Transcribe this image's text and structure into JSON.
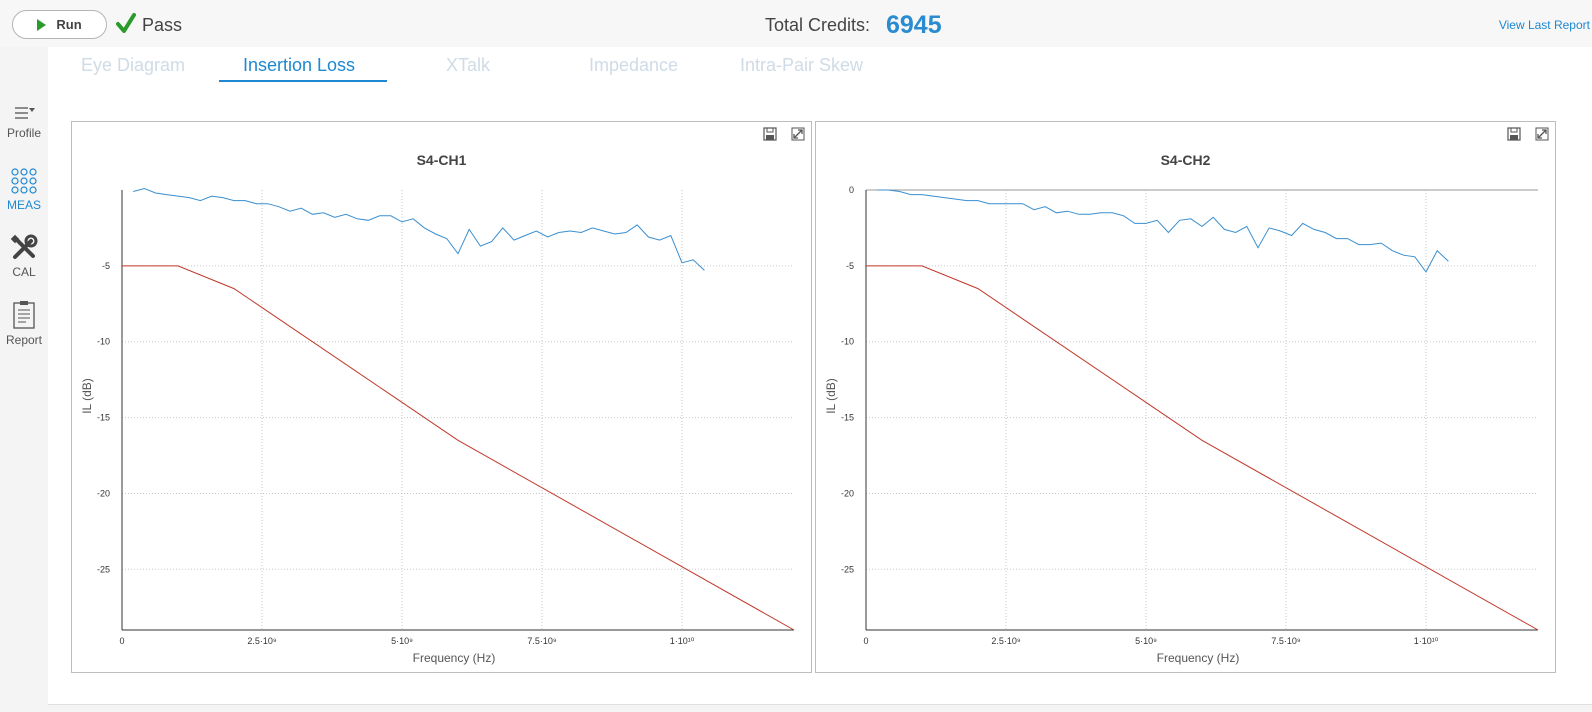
{
  "toolbar": {
    "run_label": "Run",
    "status_label": "Pass",
    "credits_label": "Total Credits:",
    "credits_value": "6945",
    "view_last_report": "View Last Report"
  },
  "sidebar": {
    "items": [
      {
        "label": "Profile",
        "icon": "menu-dropdown-icon"
      },
      {
        "label": "MEAS",
        "icon": "dots-grid-icon"
      },
      {
        "label": "CAL",
        "icon": "tools-icon"
      },
      {
        "label": "Report",
        "icon": "clipboard-icon"
      }
    ]
  },
  "tabs": [
    {
      "label": "Eye Diagram"
    },
    {
      "label": "Insertion Loss"
    },
    {
      "label": "XTalk"
    },
    {
      "label": "Impedance"
    },
    {
      "label": "Intra-Pair Skew"
    }
  ],
  "colors": {
    "accent": "#1e88d2",
    "measured": "#3a8fd0",
    "limit": "#c0392b",
    "pass_green": "#2a9a2a"
  },
  "chart_data": [
    {
      "type": "line",
      "title": "S4-CH1",
      "xlabel": "Frequency (Hz)",
      "ylabel": "IL (dB)",
      "xlim": [
        0,
        12000000000
      ],
      "ylim": [
        -29,
        0
      ],
      "x_ticks": [
        0,
        2500000000,
        5000000000,
        7500000000,
        10000000000
      ],
      "x_tick_labels": [
        "0",
        "2.5·10⁹",
        "5·10⁹",
        "7.5·10⁹",
        "1·10¹⁰"
      ],
      "y_ticks": [
        -5,
        -10,
        -15,
        -20,
        -25
      ],
      "y_tick_labels": [
        "-5",
        "-10",
        "-15",
        "-20",
        "-25"
      ],
      "grid": true,
      "series": [
        {
          "color": "#3a8fd0",
          "x": [
            200000000,
            400000000,
            600000000,
            800000000,
            1000000000,
            1200000000,
            1400000000,
            1600000000,
            1800000000,
            2000000000,
            2200000000,
            2400000000,
            2600000000,
            2800000000,
            3000000000,
            3200000000,
            3400000000,
            3600000000,
            3800000000,
            4000000000,
            4200000000,
            4400000000,
            4600000000,
            4800000000,
            5000000000,
            5200000000,
            5400000000,
            5600000000,
            5800000000,
            6000000000,
            6200000000,
            6400000000,
            6600000000,
            6800000000,
            7000000000,
            7200000000,
            7400000000,
            7600000000,
            7800000000,
            8000000000,
            8200000000,
            8400000000,
            8600000000,
            8800000000,
            9000000000,
            9200000000,
            9400000000,
            9600000000,
            9800000000,
            10000000000,
            10200000000,
            10400000000
          ],
          "y": [
            -0.1,
            0.1,
            -0.2,
            -0.3,
            -0.4,
            -0.5,
            -0.7,
            -0.4,
            -0.5,
            -0.7,
            -0.7,
            -0.9,
            -0.9,
            -1.1,
            -1.4,
            -1.2,
            -1.6,
            -1.5,
            -1.8,
            -1.6,
            -1.9,
            -2.0,
            -1.7,
            -1.7,
            -2.1,
            -1.9,
            -2.5,
            -2.9,
            -3.2,
            -4.2,
            -2.6,
            -3.7,
            -3.4,
            -2.5,
            -3.3,
            -3.0,
            -2.7,
            -3.1,
            -2.8,
            -2.7,
            -2.8,
            -2.5,
            -2.7,
            -2.9,
            -2.8,
            -2.3,
            -3.1,
            -3.3,
            -3.0,
            -4.8,
            -4.6,
            -5.3
          ]
        },
        {
          "color": "#c0392b",
          "x": [
            0,
            1000000000,
            2000000000,
            6000000000,
            12000000000
          ],
          "y": [
            -5,
            -5,
            -6.5,
            -16.5,
            -29
          ]
        }
      ]
    },
    {
      "type": "line",
      "title": "S4-CH2",
      "xlabel": "Frequency (Hz)",
      "ylabel": "IL (dB)",
      "xlim": [
        0,
        12000000000
      ],
      "ylim": [
        -29,
        0
      ],
      "x_ticks": [
        0,
        2500000000,
        5000000000,
        7500000000,
        10000000000
      ],
      "x_tick_labels": [
        "0",
        "2.5·10⁹",
        "5·10⁹",
        "7.5·10⁹",
        "1·10¹⁰"
      ],
      "y_ticks": [
        0,
        -5,
        -10,
        -15,
        -20,
        -25
      ],
      "y_tick_labels": [
        "0",
        "-5",
        "-10",
        "-15",
        "-20",
        "-25"
      ],
      "grid": true,
      "series": [
        {
          "color": "#3a8fd0",
          "x": [
            200000000,
            400000000,
            600000000,
            800000000,
            1000000000,
            1200000000,
            1400000000,
            1600000000,
            1800000000,
            2000000000,
            2200000000,
            2400000000,
            2600000000,
            2800000000,
            3000000000,
            3200000000,
            3400000000,
            3600000000,
            3800000000,
            4000000000,
            4200000000,
            4400000000,
            4600000000,
            4800000000,
            5000000000,
            5200000000,
            5400000000,
            5600000000,
            5800000000,
            6000000000,
            6200000000,
            6400000000,
            6600000000,
            6800000000,
            7000000000,
            7200000000,
            7400000000,
            7600000000,
            7800000000,
            8000000000,
            8200000000,
            8400000000,
            8600000000,
            8800000000,
            9000000000,
            9200000000,
            9400000000,
            9600000000,
            9800000000,
            10000000000,
            10200000000,
            10400000000
          ],
          "y": [
            0.0,
            0.0,
            -0.1,
            -0.3,
            -0.3,
            -0.4,
            -0.5,
            -0.6,
            -0.7,
            -0.7,
            -0.9,
            -0.9,
            -0.9,
            -0.9,
            -1.3,
            -1.1,
            -1.5,
            -1.4,
            -1.6,
            -1.6,
            -1.5,
            -1.5,
            -1.7,
            -2.2,
            -2.2,
            -2.0,
            -2.8,
            -2.0,
            -1.9,
            -2.4,
            -1.8,
            -2.6,
            -2.8,
            -2.4,
            -3.8,
            -2.5,
            -2.7,
            -3.0,
            -2.2,
            -2.6,
            -2.8,
            -3.2,
            -3.2,
            -3.6,
            -3.6,
            -3.5,
            -4.0,
            -4.3,
            -4.4,
            -5.4,
            -4.0,
            -4.7
          ]
        },
        {
          "color": "#c0392b",
          "x": [
            0,
            1000000000,
            2000000000,
            6000000000,
            12000000000
          ],
          "y": [
            -5,
            -5,
            -6.5,
            -16.5,
            -29
          ]
        }
      ]
    }
  ]
}
